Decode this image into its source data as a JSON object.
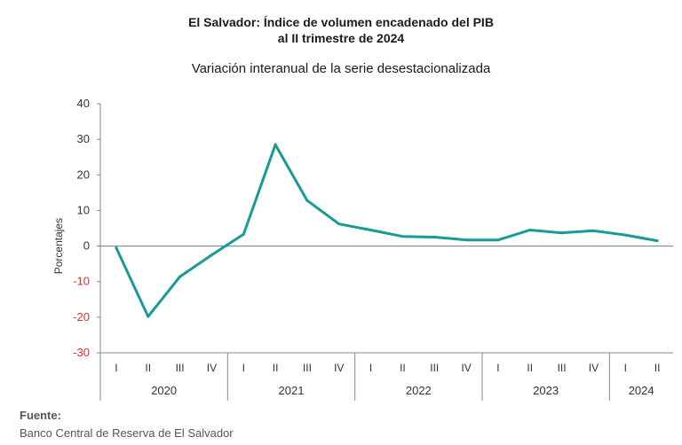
{
  "chart_data": {
    "type": "line",
    "title_line1": "El Salvador: Índice de volumen encadenado del PIB",
    "title_line2": "al II trimestre de 2024",
    "subtitle": "Variación interanual de la serie desestacionalizada",
    "ylabel": "Porcentajes",
    "xlabel": "",
    "ylim": [
      -30,
      40
    ],
    "yticks": [
      "40",
      "30",
      "20",
      "10",
      "0",
      "-10",
      "-20",
      "-30"
    ],
    "ytick_values": [
      40,
      30,
      20,
      10,
      0,
      -10,
      -20,
      -30
    ],
    "categories": [
      "I",
      "II",
      "III",
      "IV",
      "I",
      "II",
      "III",
      "IV",
      "I",
      "II",
      "III",
      "IV",
      "I",
      "II",
      "III",
      "IV",
      "I",
      "II"
    ],
    "years": [
      {
        "label": "2020",
        "count": 4
      },
      {
        "label": "2021",
        "count": 4
      },
      {
        "label": "2022",
        "count": 4
      },
      {
        "label": "2023",
        "count": 4
      },
      {
        "label": "2024",
        "count": 2
      }
    ],
    "series": [
      {
        "values": [
          -0.5,
          -19.8,
          -8.6,
          -2.5,
          3.3,
          28.5,
          12.8,
          6.2,
          4.5,
          2.7,
          2.5,
          1.7,
          1.7,
          4.5,
          3.7,
          4.3,
          3.1,
          1.5
        ],
        "color": "#169b95"
      }
    ],
    "negative_tick_color": "#e03030",
    "grid": false
  },
  "source": {
    "label": "Fuente:",
    "text": "Banco Central de Reserva de El Salvador"
  }
}
